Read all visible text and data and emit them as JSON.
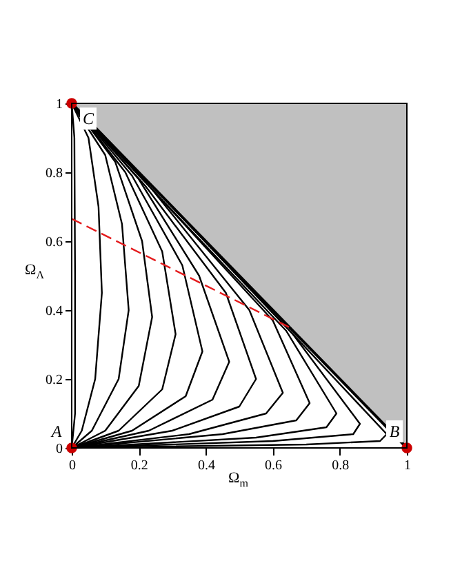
{
  "chart_data": {
    "type": "line",
    "xlabel": "Ω$_{m}$",
    "ylabel": "Ω$_{Λ}$",
    "xlim": [
      0,
      1
    ],
    "ylim": [
      0,
      1
    ],
    "xticks": [
      0,
      0.2,
      0.4,
      0.6,
      0.8,
      1
    ],
    "yticks": [
      0,
      0.2,
      0.4,
      0.6,
      0.8,
      1
    ],
    "grid": false,
    "series": [
      {
        "type": "area",
        "color": "#c0c0c0",
        "x": [
          0,
          1
        ],
        "values": [
          1,
          0
        ]
      },
      {
        "color": "#000000",
        "x": [
          0,
          0.01,
          0.01,
          0.008,
          0
        ],
        "values": [
          0,
          0.1,
          0.5,
          0.9,
          1
        ]
      },
      {
        "color": "#000000",
        "x": [
          0,
          0.03,
          0.07,
          0.09,
          0.08,
          0.05,
          0
        ],
        "values": [
          0,
          0.05,
          0.2,
          0.45,
          0.7,
          0.9,
          1
        ]
      },
      {
        "color": "#000000",
        "x": [
          0,
          0.06,
          0.14,
          0.17,
          0.15,
          0.1,
          0
        ],
        "values": [
          0,
          0.05,
          0.2,
          0.4,
          0.65,
          0.85,
          1
        ]
      },
      {
        "color": "#000000",
        "x": [
          0,
          0.1,
          0.2,
          0.24,
          0.21,
          0.13,
          0
        ],
        "values": [
          0,
          0.05,
          0.18,
          0.38,
          0.6,
          0.83,
          1
        ]
      },
      {
        "color": "#000000",
        "x": [
          0,
          0.14,
          0.27,
          0.31,
          0.27,
          0.16,
          0
        ],
        "values": [
          0,
          0.05,
          0.17,
          0.33,
          0.57,
          0.8,
          1
        ]
      },
      {
        "color": "#000000",
        "x": [
          0,
          0.18,
          0.34,
          0.39,
          0.33,
          0.18,
          0
        ],
        "values": [
          0,
          0.05,
          0.15,
          0.28,
          0.53,
          0.79,
          1
        ]
      },
      {
        "color": "#000000",
        "x": [
          0,
          0.23,
          0.42,
          0.47,
          0.38,
          0.2,
          0
        ],
        "values": [
          0,
          0.05,
          0.14,
          0.25,
          0.5,
          0.78,
          1
        ]
      },
      {
        "color": "#000000",
        "x": [
          0,
          0.3,
          0.5,
          0.55,
          0.46,
          0.22,
          0
        ],
        "values": [
          0,
          0.05,
          0.12,
          0.2,
          0.45,
          0.76,
          1
        ]
      },
      {
        "color": "#000000",
        "x": [
          0,
          0.35,
          0.58,
          0.63,
          0.53,
          0.24,
          0
        ],
        "values": [
          0,
          0.04,
          0.1,
          0.16,
          0.4,
          0.75,
          1
        ]
      },
      {
        "color": "#000000",
        "x": [
          0,
          0.45,
          0.67,
          0.71,
          0.6,
          0.25,
          0
        ],
        "values": [
          0,
          0.04,
          0.08,
          0.13,
          0.37,
          0.74,
          1
        ]
      },
      {
        "color": "#000000",
        "x": [
          0,
          0.55,
          0.76,
          0.79,
          0.64,
          0.26,
          0
        ],
        "values": [
          0,
          0.03,
          0.06,
          0.1,
          0.34,
          0.73,
          1
        ]
      },
      {
        "color": "#000000",
        "x": [
          0,
          0.6,
          0.84,
          0.86,
          0.66,
          0.27,
          0
        ],
        "values": [
          0,
          0.02,
          0.04,
          0.07,
          0.33,
          0.73,
          1
        ]
      },
      {
        "color": "#000000",
        "x": [
          0,
          0.7,
          0.92,
          0.94,
          0.67,
          0.27,
          0
        ],
        "values": [
          0,
          0.01,
          0.02,
          0.04,
          0.32,
          0.73,
          1
        ]
      },
      {
        "color": "#e41a1c",
        "line_style": "dashed",
        "x": [
          0,
          0.65
        ],
        "values": [
          0.665,
          0.35
        ]
      },
      {
        "type": "scatter",
        "marker": "circle",
        "color": "#cc0000",
        "x": [
          0,
          1,
          0
        ],
        "values": [
          0,
          0,
          1
        ],
        "value_labels": [
          "A",
          "B",
          "C"
        ]
      }
    ]
  }
}
